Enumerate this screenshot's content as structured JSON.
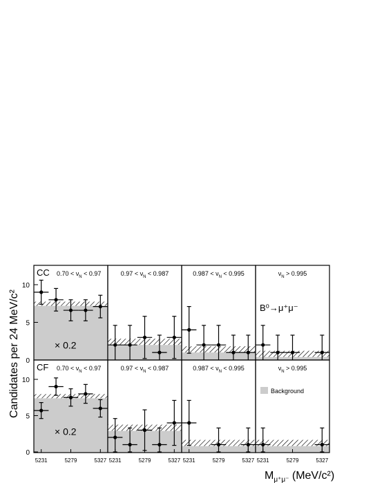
{
  "chart_data": {
    "type": "scatter",
    "ylabel": "Candidates per 24 MeV/c²",
    "xlabel_main": "M",
    "xlabel_sub": "μ⁺μ⁻",
    "xlabel_unit": " (MeV/c²)",
    "xlim": [
      5219,
      5339
    ],
    "ylim": [
      0,
      12
    ],
    "yticks": [
      0,
      5,
      10
    ],
    "xtick_labels": [
      "5231",
      "5279",
      "5327"
    ],
    "xtick_values": [
      5231,
      5279,
      5327
    ],
    "x_bin_centers": [
      5231,
      5255,
      5279,
      5303,
      5327
    ],
    "bin_halfwidth": 12,
    "decay_label": "B⁰→μ⁺μ⁻",
    "legend_label": "Background",
    "colors": {
      "band_fill": "#cccccc",
      "marker": "#000000",
      "frame": "#000000"
    },
    "rows": [
      {
        "label": "CC",
        "panels": [
          {
            "label": "0.70 < ν",
            "label_sub": "N",
            "label_tail": " < 0.97",
            "scale_label": "× 0.2",
            "scaled_fill": 7.2,
            "band_y": 7.2,
            "points": [
              [
                5231,
                9.0,
                1.6
              ],
              [
                5255,
                8.0,
                1.5
              ],
              [
                5279,
                6.6,
                1.4
              ],
              [
                5303,
                6.6,
                1.4
              ],
              [
                5327,
                7.1,
                1.5
              ]
            ]
          },
          {
            "label": "0.97 < ν",
            "label_sub": "N",
            "label_tail": " < 0.987",
            "band_y": 2.0,
            "points": [
              [
                5231,
                2.0,
                2.6
              ],
              [
                5255,
                2.0,
                2.6
              ],
              [
                5279,
                3.0,
                2.8
              ],
              [
                5303,
                1.0,
                2.3
              ],
              [
                5327,
                3.0,
                2.8
              ]
            ]
          },
          {
            "label": "0.987 < ν",
            "label_sub": "N",
            "label_tail": " < 0.995",
            "band_y": 1.0,
            "points": [
              [
                5231,
                4.0,
                3.1
              ],
              [
                5255,
                2.0,
                2.6
              ],
              [
                5279,
                2.0,
                2.6
              ],
              [
                5303,
                1.0,
                2.3
              ],
              [
                5327,
                1.0,
                2.3
              ]
            ]
          },
          {
            "label": "ν",
            "label_sub": "N",
            "label_tail": " > 0.995",
            "band_y": 0.4,
            "show_decay_label": true,
            "points": [
              [
                5231,
                2.0,
                2.6
              ],
              [
                5255,
                1.0,
                2.3
              ],
              [
                5279,
                1.0,
                2.3
              ],
              [
                5327,
                1.0,
                2.3
              ]
            ]
          }
        ]
      },
      {
        "label": "CF",
        "panels": [
          {
            "label": "0.70 < ν",
            "label_sub": "N",
            "label_tail": " < 0.97",
            "scale_label": "× 0.2",
            "scaled_fill": 7.4,
            "band_y": 7.4,
            "points": [
              [
                5231,
                5.7,
                1.1
              ],
              [
                5255,
                9.0,
                1.2
              ],
              [
                5279,
                7.5,
                1.2
              ],
              [
                5303,
                8.0,
                1.3
              ],
              [
                5327,
                6.0,
                1.2
              ]
            ]
          },
          {
            "label": "0.97 < ν",
            "label_sub": "N",
            "label_tail": " < 0.987",
            "band_y": 2.9,
            "points": [
              [
                5231,
                2.0,
                2.6
              ],
              [
                5255,
                1.0,
                2.3
              ],
              [
                5279,
                3.0,
                2.8
              ],
              [
                5303,
                1.0,
                2.3
              ],
              [
                5327,
                4.0,
                3.1
              ]
            ]
          },
          {
            "label": "0.987 < ν",
            "label_sub": "N",
            "label_tail": " < 0.995",
            "band_y": 0.8,
            "points": [
              [
                5231,
                4.0,
                3.1
              ],
              [
                5279,
                1.0,
                2.3
              ],
              [
                5327,
                1.0,
                2.3
              ]
            ]
          },
          {
            "label": "ν",
            "label_sub": "N",
            "label_tail": " > 0.995",
            "band_y": 0.8,
            "show_legend": true,
            "points": [
              [
                5231,
                1.0,
                2.3
              ],
              [
                5327,
                1.0,
                2.3
              ]
            ]
          }
        ]
      }
    ]
  }
}
